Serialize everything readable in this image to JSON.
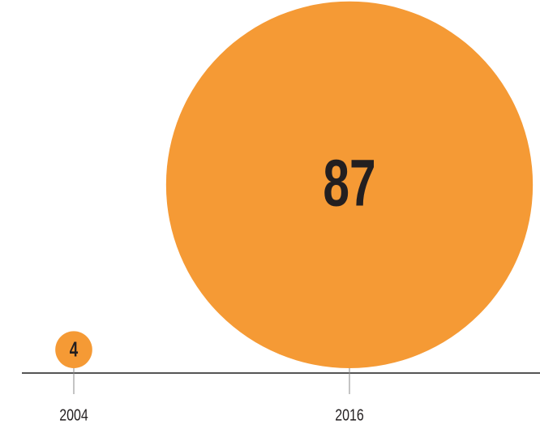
{
  "chart_data": {
    "type": "bubble",
    "categories": [
      "2004",
      "2016"
    ],
    "values": [
      4,
      87
    ],
    "color": "#f59a35"
  }
}
